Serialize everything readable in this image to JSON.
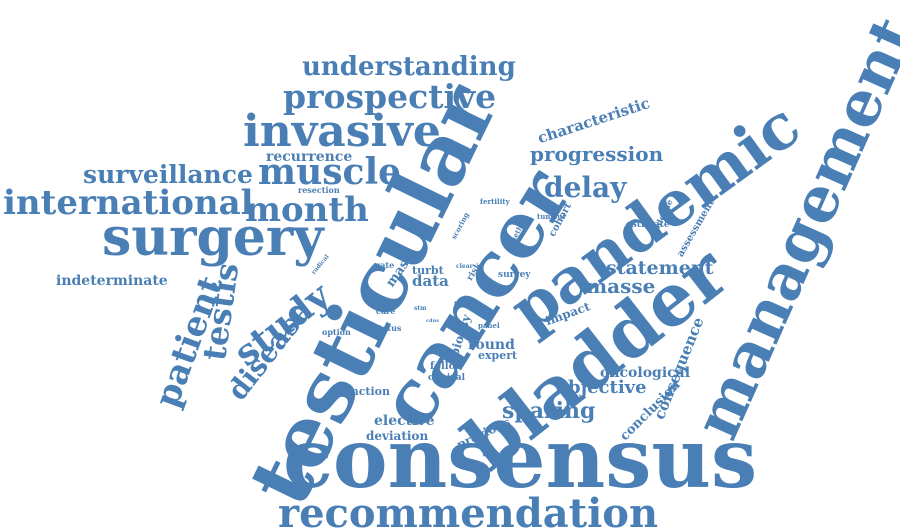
{
  "color": "#4a7fb5",
  "words": [
    "consensus",
    "testicular",
    "cancer",
    "bladder",
    "pandemic",
    "management",
    "recommendation",
    "surgery",
    "invasive",
    "muscle",
    "international",
    "month",
    "prospective",
    "understanding",
    "surveillance",
    "study",
    "patient",
    "testis",
    "disease",
    "delay",
    "progression",
    "characteristic",
    "recurrence",
    "sparing",
    "masse",
    "statement",
    "objective",
    "oncological",
    "consequence",
    "conclusion",
    "previous",
    "deviation",
    "elective",
    "function",
    "clinical",
    "follow",
    "round",
    "expert",
    "biopsy",
    "impact",
    "survey",
    "panel",
    "status",
    "option",
    "care",
    "term",
    "stm",
    "cdus",
    "risk",
    "clear",
    "turbt",
    "rate",
    "mas",
    "data",
    "radical",
    "scoring",
    "method",
    "fertility",
    "cohort",
    "tumour",
    "guideline",
    "assessment",
    "estimate",
    "resection",
    "indeterminate"
  ]
}
